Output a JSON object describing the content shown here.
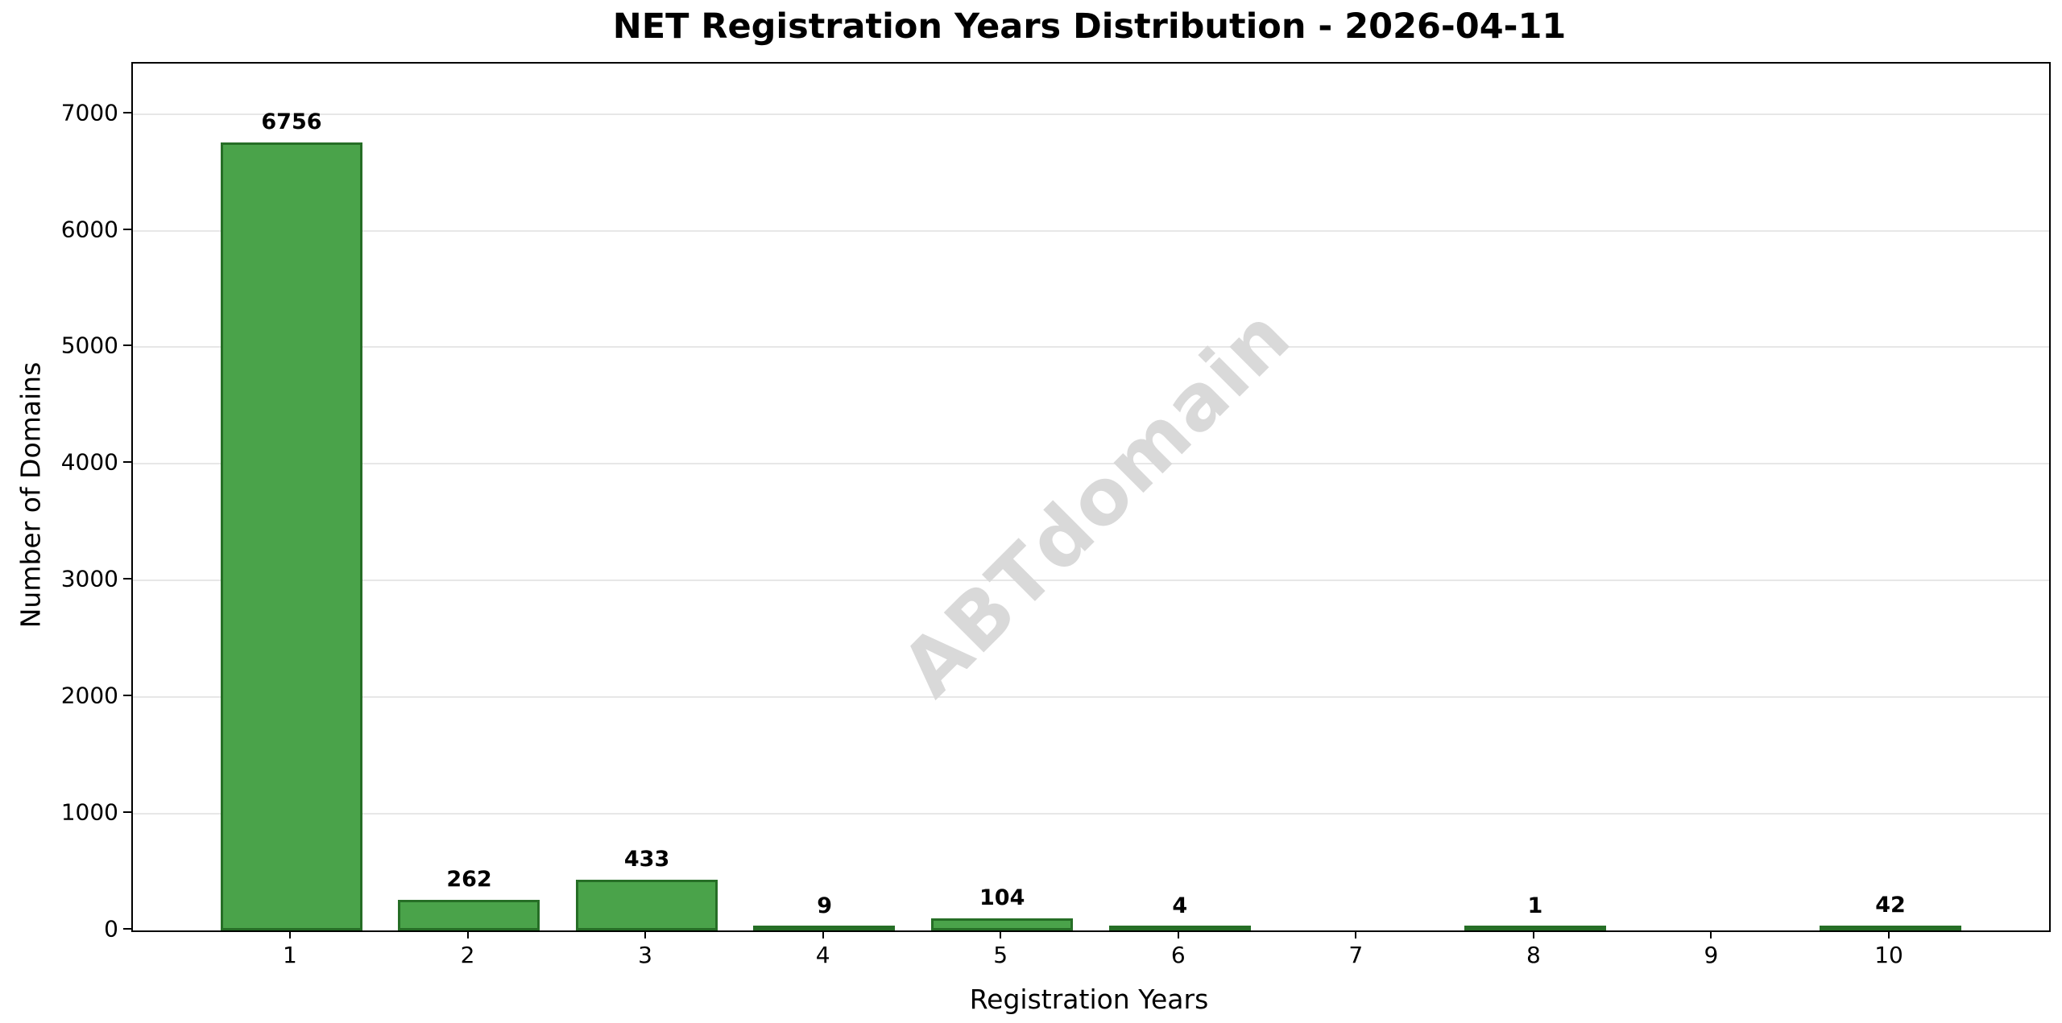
{
  "chart_data": {
    "type": "bar",
    "title": "NET Registration Years Distribution - 2026-04-11",
    "xlabel": "Registration Years",
    "ylabel": "Number of Domains",
    "categories": [
      "1",
      "2",
      "3",
      "4",
      "5",
      "6",
      "7",
      "8",
      "9",
      "10"
    ],
    "values": [
      6756,
      262,
      433,
      9,
      104,
      4,
      0,
      1,
      0,
      42
    ],
    "bar_labels": [
      "6756",
      "262",
      "433",
      "9",
      "104",
      "4",
      "",
      "1",
      "",
      "42"
    ],
    "xlim": [
      0.107,
      10.893
    ],
    "ylim": [
      0,
      7432
    ],
    "yticks": [
      0,
      1000,
      2000,
      3000,
      4000,
      5000,
      6000,
      7000
    ],
    "grid": "horizontal-only",
    "legend": "none",
    "watermark": "ABTdomain",
    "colors": {
      "bar_fill": "#4aa34a",
      "bar_edge": "#266e26",
      "gridline": "#e7e7e7",
      "axis": "#000000",
      "watermark": "#d9d9d9"
    }
  }
}
